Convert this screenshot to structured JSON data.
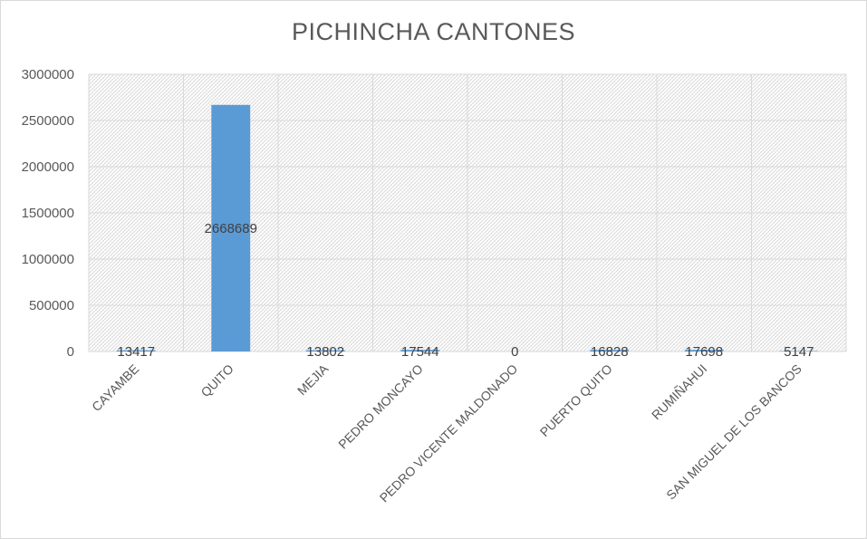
{
  "chart_data": {
    "type": "bar",
    "title": "PICHINCHA CANTONES",
    "categories": [
      "CAYAMBE",
      "QUITO",
      "MEJIA",
      "PEDRO MONCAYO",
      "PEDRO VICENTE MALDONADO",
      "PUERTO QUITO",
      "RUMIÑAHUI",
      "SAN MIGUEL DE LOS BANCOS"
    ],
    "values": [
      13417,
      2668689,
      13802,
      17544,
      0,
      16828,
      17698,
      5147
    ],
    "data_labels": [
      "13417",
      "2668689",
      "13802",
      "17544",
      "0",
      "16828",
      "17698",
      "5147"
    ],
    "ylim": [
      0,
      3000000
    ],
    "yticks": [
      0,
      500000,
      1000000,
      1500000,
      2000000,
      2500000,
      3000000
    ],
    "ytick_labels": [
      "0",
      "500000",
      "1000000",
      "1500000",
      "2000000",
      "2500000",
      "3000000"
    ],
    "xlabel": "",
    "ylabel": "",
    "grid": true,
    "legend": "none",
    "bar_color": "#5b9bd5",
    "plot_pattern": "diagonal-hatch"
  }
}
